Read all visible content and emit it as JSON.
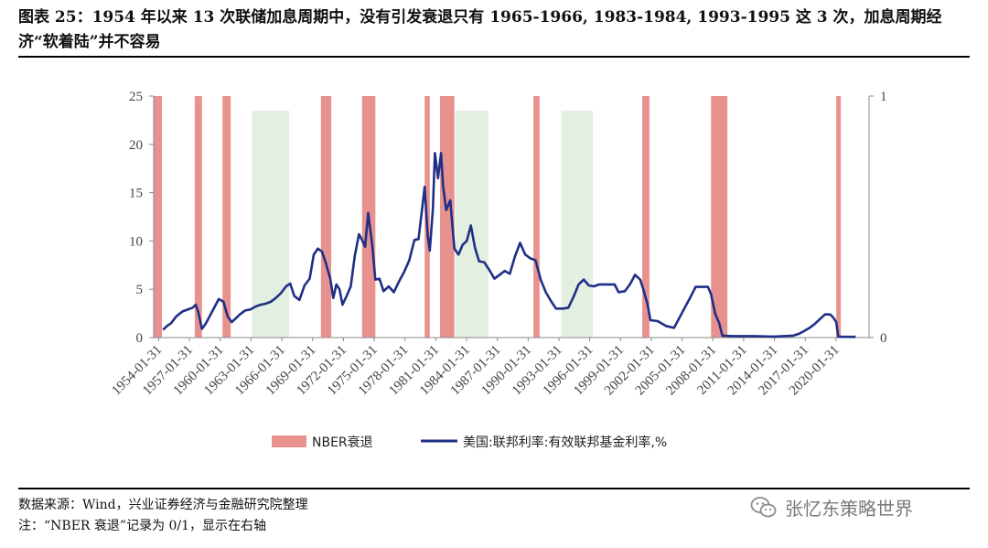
{
  "title": "图表 25：1954 年以来 13 次联储加息周期中，没有引发衰退只有 1965-1966, 1983-1984, 1993-1995 这 3 次，加息周期经济“软着陆”并不容易",
  "source_note": "数据来源：Wind，兴业证券经济与金融研究院整理",
  "footnote": "注：“NBER 衰退”记录为 0/1，显示在右轴",
  "watermark": "张忆东策略世界",
  "colors": {
    "recession": "#e8928f",
    "fed_line": "#1f2f86",
    "soft_landing": "#e3efe0",
    "axis": "#888888"
  },
  "chart_data": {
    "type": "line",
    "ylim_left": [
      0,
      25
    ],
    "ylim_right": [
      0,
      1
    ],
    "yticks_left": [
      "25",
      "20",
      "15",
      "10",
      "5",
      "0"
    ],
    "yticks_right": [
      "1",
      "0"
    ],
    "xticks": [
      "1954-01-31",
      "1957-01-31",
      "1960-01-31",
      "1963-01-31",
      "1966-01-31",
      "1969-01-31",
      "1972-01-31",
      "1975-01-31",
      "1978-01-31",
      "1981-01-31",
      "1984-01-31",
      "1987-01-31",
      "1990-01-31",
      "1993-01-31",
      "1996-01-31",
      "1999-01-31",
      "2002-01-31",
      "2005-01-31",
      "2008-01-31",
      "2011-01-31",
      "2014-01-31",
      "2017-01-31",
      "2020-01-31"
    ],
    "legend": [
      {
        "name": "NBER衰退",
        "type": "area"
      },
      {
        "name": "美国:联邦利率:有效联邦基金利率,%",
        "type": "line"
      }
    ],
    "nber_recessions": [
      [
        1953.6,
        1954.4
      ],
      [
        1957.6,
        1958.3
      ],
      [
        1960.3,
        1961.1
      ],
      [
        1969.9,
        1970.9
      ],
      [
        1973.9,
        1975.2
      ],
      [
        1980.0,
        1980.5
      ],
      [
        1981.5,
        1982.9
      ],
      [
        1990.6,
        1991.2
      ],
      [
        2001.2,
        2001.9
      ],
      [
        2007.9,
        2009.5
      ],
      [
        2020.1,
        2020.4
      ]
    ],
    "soft_landing_periods": [
      [
        1963.2,
        1966.8
      ],
      [
        1983.0,
        1986.2
      ],
      [
        1993.3,
        1996.4
      ]
    ],
    "series": [
      {
        "name": "美国:联邦利率:有效联邦基金利率,%",
        "x": [
          1954.5,
          1954.9,
          1955.3,
          1955.8,
          1956.4,
          1956.9,
          1957.4,
          1957.7,
          1957.95,
          1958.3,
          1958.7,
          1959.2,
          1959.7,
          1959.95,
          1960.4,
          1960.8,
          1961.2,
          1961.6,
          1962.0,
          1962.5,
          1963.0,
          1963.5,
          1964.0,
          1964.5,
          1965.0,
          1965.5,
          1966.0,
          1966.5,
          1966.9,
          1967.3,
          1967.8,
          1968.3,
          1968.8,
          1969.2,
          1969.6,
          1970.0,
          1970.4,
          1970.8,
          1971.1,
          1971.4,
          1971.7,
          1972.0,
          1972.4,
          1972.8,
          1973.2,
          1973.6,
          1973.9,
          1974.2,
          1974.5,
          1974.9,
          1975.2,
          1975.6,
          1976.0,
          1976.5,
          1977.0,
          1977.5,
          1978.0,
          1978.5,
          1979.0,
          1979.4,
          1979.8,
          1980.0,
          1980.3,
          1980.5,
          1980.8,
          1981.0,
          1981.3,
          1981.6,
          1981.8,
          1982.1,
          1982.5,
          1982.9,
          1983.3,
          1983.7,
          1984.1,
          1984.5,
          1984.9,
          1985.3,
          1985.8,
          1986.3,
          1986.8,
          1987.3,
          1987.8,
          1988.3,
          1988.8,
          1989.3,
          1989.8,
          1990.3,
          1990.8,
          1991.3,
          1991.8,
          1992.3,
          1992.8,
          1993.5,
          1994.0,
          1994.5,
          1995.0,
          1995.5,
          1996.0,
          1996.5,
          1997.0,
          1997.5,
          1998.0,
          1998.5,
          1998.9,
          1999.5,
          2000.0,
          2000.5,
          2001.0,
          2001.3,
          2001.7,
          2002.0,
          2002.7,
          2003.5,
          2004.3,
          2004.8,
          2005.3,
          2005.8,
          2006.4,
          2007.0,
          2007.6,
          2007.9,
          2008.3,
          2008.7,
          2009.0,
          2010.0,
          2012.0,
          2014.0,
          2015.9,
          2016.5,
          2017.0,
          2017.5,
          2018.0,
          2018.5,
          2019.0,
          2019.5,
          2019.8,
          2020.1,
          2020.3,
          2021.0,
          2022.0
        ],
        "values": [
          0.8,
          1.2,
          1.5,
          2.2,
          2.7,
          2.9,
          3.1,
          3.4,
          2.6,
          0.9,
          1.5,
          2.5,
          3.5,
          4.0,
          3.7,
          2.2,
          1.6,
          2.0,
          2.4,
          2.8,
          2.9,
          3.2,
          3.4,
          3.5,
          3.7,
          4.1,
          4.6,
          5.3,
          5.6,
          4.3,
          3.9,
          5.4,
          6.1,
          8.6,
          9.2,
          8.9,
          7.6,
          6.1,
          4.1,
          5.5,
          5.0,
          3.4,
          4.3,
          5.3,
          8.5,
          10.7,
          10.1,
          9.4,
          12.9,
          9.5,
          6.0,
          6.1,
          4.8,
          5.3,
          4.7,
          5.8,
          6.8,
          8.0,
          10.1,
          10.2,
          13.8,
          15.6,
          10.5,
          9.0,
          13.3,
          19.1,
          16.5,
          19.1,
          15.6,
          13.2,
          14.2,
          9.2,
          8.6,
          9.6,
          10.0,
          11.6,
          9.3,
          7.9,
          7.8,
          7.0,
          6.1,
          6.5,
          6.9,
          6.6,
          8.4,
          9.8,
          8.6,
          8.2,
          8.0,
          6.0,
          4.7,
          3.8,
          3.0,
          3.0,
          3.1,
          4.2,
          5.5,
          6.0,
          5.4,
          5.3,
          5.5,
          5.5,
          5.5,
          5.5,
          4.7,
          4.8,
          5.5,
          6.5,
          6.0,
          5.0,
          3.5,
          1.8,
          1.7,
          1.2,
          1.0,
          2.0,
          3.0,
          4.0,
          5.25,
          5.25,
          5.25,
          4.5,
          2.5,
          1.5,
          0.2,
          0.15,
          0.15,
          0.1,
          0.2,
          0.4,
          0.7,
          1.0,
          1.4,
          1.9,
          2.4,
          2.4,
          2.1,
          1.6,
          0.1,
          0.08,
          0.08
        ]
      }
    ]
  }
}
